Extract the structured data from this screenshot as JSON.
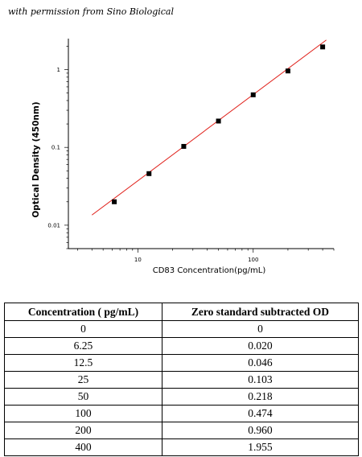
{
  "credit": "with permission from Sino Biological",
  "chart_data": {
    "type": "scatter",
    "xlabel": "CD83  Concentration(pg/mL)",
    "ylabel": "Optical Density (450nm)",
    "xscale": "log",
    "yscale": "log",
    "xlim": [
      2.5,
      500
    ],
    "ylim": [
      0.005,
      2.5
    ],
    "x_ticks": [
      {
        "value": 10,
        "label": "10"
      },
      {
        "value": 100,
        "label": "100"
      }
    ],
    "y_ticks": [
      {
        "value": 0.01,
        "label": "0.01"
      },
      {
        "value": 0.1,
        "label": "0.1"
      },
      {
        "value": 1,
        "label": "1"
      }
    ],
    "grid": false,
    "legend": "none",
    "series": [
      {
        "x": [
          6.25,
          12.5,
          25,
          50,
          100,
          200,
          400
        ],
        "y": [
          0.02,
          0.046,
          0.103,
          0.218,
          0.474,
          0.96,
          1.955
        ],
        "marker": "square",
        "color": "#000000"
      }
    ],
    "fit_line": {
      "x": [
        4,
        430
      ],
      "y": [
        0.0135,
        2.4
      ],
      "color": "#e0201a"
    }
  },
  "table": {
    "headers": [
      "Concentration ( pg/mL)",
      "Zero standard subtracted OD"
    ],
    "rows": [
      [
        "0",
        "0"
      ],
      [
        "6.25",
        "0.020"
      ],
      [
        "12.5",
        "0.046"
      ],
      [
        "25",
        "0.103"
      ],
      [
        "50",
        "0.218"
      ],
      [
        "100",
        "0.474"
      ],
      [
        "200",
        "0.960"
      ],
      [
        "400",
        "1.955"
      ]
    ]
  }
}
